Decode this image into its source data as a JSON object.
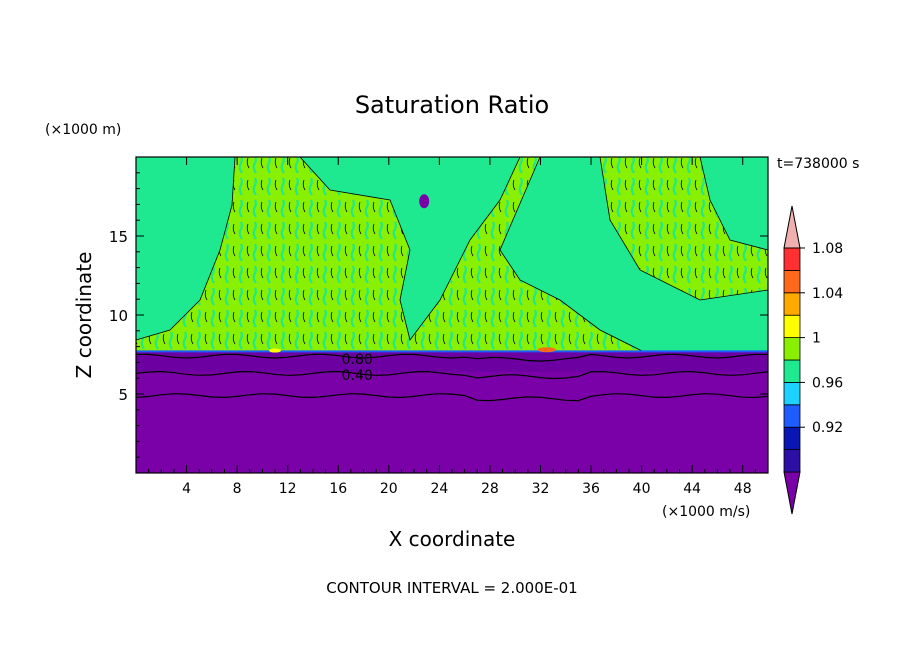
{
  "chart_data": {
    "type": "heatmap",
    "title": "Saturation Ratio",
    "xlabel": "X coordinate",
    "ylabel": "Z coordinate",
    "x_unit": "(×1000 m/s)",
    "y_unit": "(×1000 m)",
    "time_label": "t=738000 s",
    "footer": "CONTOUR INTERVAL = 2.000E-01",
    "xlim": [
      0,
      50
    ],
    "ylim": [
      0,
      20
    ],
    "x_ticks": [
      4,
      8,
      12,
      16,
      20,
      24,
      28,
      32,
      36,
      40,
      44,
      48
    ],
    "y_ticks": [
      5,
      10,
      15
    ],
    "contour_labels": [
      {
        "text": "0.80",
        "x": 17.5,
        "y": 7.2
      },
      {
        "text": "0.40",
        "x": 17.5,
        "y": 6.2
      }
    ],
    "colorbar": {
      "levels": [
        0.92,
        0.96,
        1,
        1.04,
        1.08
      ],
      "tick_labels": [
        "0.92",
        "0.96",
        "1",
        "1.04",
        "1.08"
      ],
      "colors": [
        "#7a00a8",
        "#2e0fa6",
        "#0a16b4",
        "#1e5cff",
        "#1ed2ff",
        "#1ee890",
        "#88f000",
        "#ffff00",
        "#ffaa00",
        "#ff6a1a",
        "#ff3030",
        "#f0b0b0"
      ]
    }
  }
}
